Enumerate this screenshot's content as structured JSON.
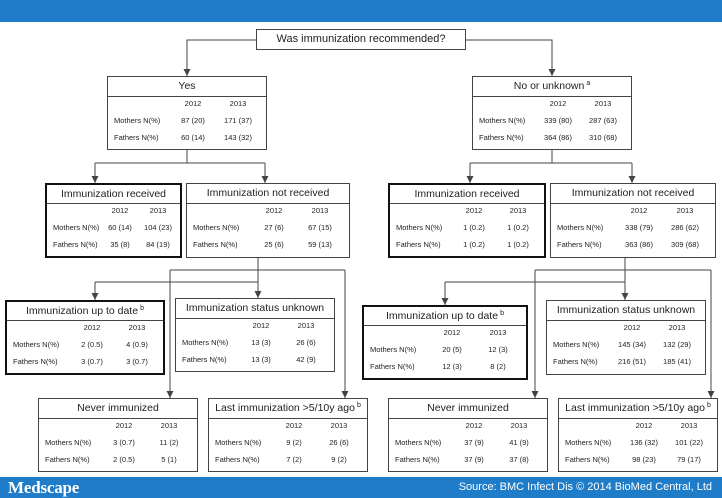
{
  "brand": {
    "logo_text": "Medscape"
  },
  "footer": {
    "source": "Source: BMC Infect Dis © 2014 BioMed Central, Ltd"
  },
  "colors": {
    "bar": "#1e7cc8",
    "line": "#444444",
    "text": "#222222"
  },
  "diagram": {
    "root": {
      "title": "Was immunization recommended?"
    },
    "nodes": [
      {
        "title": "Yes",
        "years": [
          "2012",
          "2013"
        ],
        "rows": [
          {
            "label": "Mothers N(%)",
            "values": [
              "87 (20)",
              "171 (37)"
            ]
          },
          {
            "label": "Fathers N(%)",
            "values": [
              "60 (14)",
              "143 (32)"
            ]
          }
        ]
      },
      {
        "title": "No or unknown",
        "sup": "a",
        "years": [
          "2012",
          "2013"
        ],
        "rows": [
          {
            "label": "Mothers N(%)",
            "values": [
              "339 (80)",
              "287 (63)"
            ]
          },
          {
            "label": "Fathers N(%)",
            "values": [
              "364 (86)",
              "310 (68)"
            ]
          }
        ]
      },
      {
        "title": "Immunization received",
        "years": [
          "2012",
          "2013"
        ],
        "rows": [
          {
            "label": "Mothers N(%)",
            "values": [
              "60 (14)",
              "104 (23)"
            ]
          },
          {
            "label": "Fathers N(%)",
            "values": [
              "35 (8)",
              "84 (19)"
            ]
          }
        ]
      },
      {
        "title": "Immunization not received",
        "years": [
          "2012",
          "2013"
        ],
        "rows": [
          {
            "label": "Mothers N(%)",
            "values": [
              "27 (6)",
              "67 (15)"
            ]
          },
          {
            "label": "Fathers N(%)",
            "values": [
              "25 (6)",
              "59 (13)"
            ]
          }
        ]
      },
      {
        "title": "Immunization received",
        "years": [
          "2012",
          "2013"
        ],
        "rows": [
          {
            "label": "Mothers N(%)",
            "values": [
              "1 (0.2)",
              "1 (0.2)"
            ]
          },
          {
            "label": "Fathers N(%)",
            "values": [
              "1 (0.2)",
              "1 (0.2)"
            ]
          }
        ]
      },
      {
        "title": "Immunization not received",
        "years": [
          "2012",
          "2013"
        ],
        "rows": [
          {
            "label": "Mothers N(%)",
            "values": [
              "338 (79)",
              "286 (62)"
            ]
          },
          {
            "label": "Fathers N(%)",
            "values": [
              "363 (86)",
              "309 (68)"
            ]
          }
        ]
      },
      {
        "title": "Immunization up to date",
        "sup": "b",
        "years": [
          "2012",
          "2013"
        ],
        "rows": [
          {
            "label": "Mothers N(%)",
            "values": [
              "2 (0.5)",
              "4 (0.9)"
            ]
          },
          {
            "label": "Fathers N(%)",
            "values": [
              "3 (0.7)",
              "3 (0.7)"
            ]
          }
        ]
      },
      {
        "title": "Immunization status unknown",
        "years": [
          "2012",
          "2013"
        ],
        "rows": [
          {
            "label": "Mothers N(%)",
            "values": [
              "13 (3)",
              "26 (6)"
            ]
          },
          {
            "label": "Fathers N(%)",
            "values": [
              "13 (3)",
              "42 (9)"
            ]
          }
        ]
      },
      {
        "title": "Immunization up to date",
        "sup": "b",
        "years": [
          "2012",
          "2013"
        ],
        "rows": [
          {
            "label": "Mothers N(%)",
            "values": [
              "20 (5)",
              "12 (3)"
            ]
          },
          {
            "label": "Fathers N(%)",
            "values": [
              "12 (3)",
              "8 (2)"
            ]
          }
        ]
      },
      {
        "title": "Immunization status unknown",
        "years": [
          "2012",
          "2013"
        ],
        "rows": [
          {
            "label": "Mothers N(%)",
            "values": [
              "145 (34)",
              "132 (29)"
            ]
          },
          {
            "label": "Fathers N(%)",
            "values": [
              "216 (51)",
              "185 (41)"
            ]
          }
        ]
      },
      {
        "title": "Never immunized",
        "years": [
          "2012",
          "2013"
        ],
        "rows": [
          {
            "label": "Mothers N(%)",
            "values": [
              "3 (0.7)",
              "11 (2)"
            ]
          },
          {
            "label": "Fathers N(%)",
            "values": [
              "2 (0.5)",
              "5 (1)"
            ]
          }
        ]
      },
      {
        "title": "Last immunization >5/10y ago",
        "sup": "b",
        "years": [
          "2012",
          "2013"
        ],
        "rows": [
          {
            "label": "Mothers N(%)",
            "values": [
              "9 (2)",
              "26 (6)"
            ]
          },
          {
            "label": "Fathers N(%)",
            "values": [
              "7 (2)",
              "9 (2)"
            ]
          }
        ]
      },
      {
        "title": "Never immunized",
        "years": [
          "2012",
          "2013"
        ],
        "rows": [
          {
            "label": "Mothers N(%)",
            "values": [
              "37 (9)",
              "41 (9)"
            ]
          },
          {
            "label": "Fathers N(%)",
            "values": [
              "37 (9)",
              "37 (8)"
            ]
          }
        ]
      },
      {
        "title": "Last immunization >5/10y ago",
        "sup": "b",
        "years": [
          "2012",
          "2013"
        ],
        "rows": [
          {
            "label": "Mothers N(%)",
            "values": [
              "136 (32)",
              "101 (22)"
            ]
          },
          {
            "label": "Fathers N(%)",
            "values": [
              "98 (23)",
              "79 (17)"
            ]
          }
        ]
      }
    ]
  }
}
